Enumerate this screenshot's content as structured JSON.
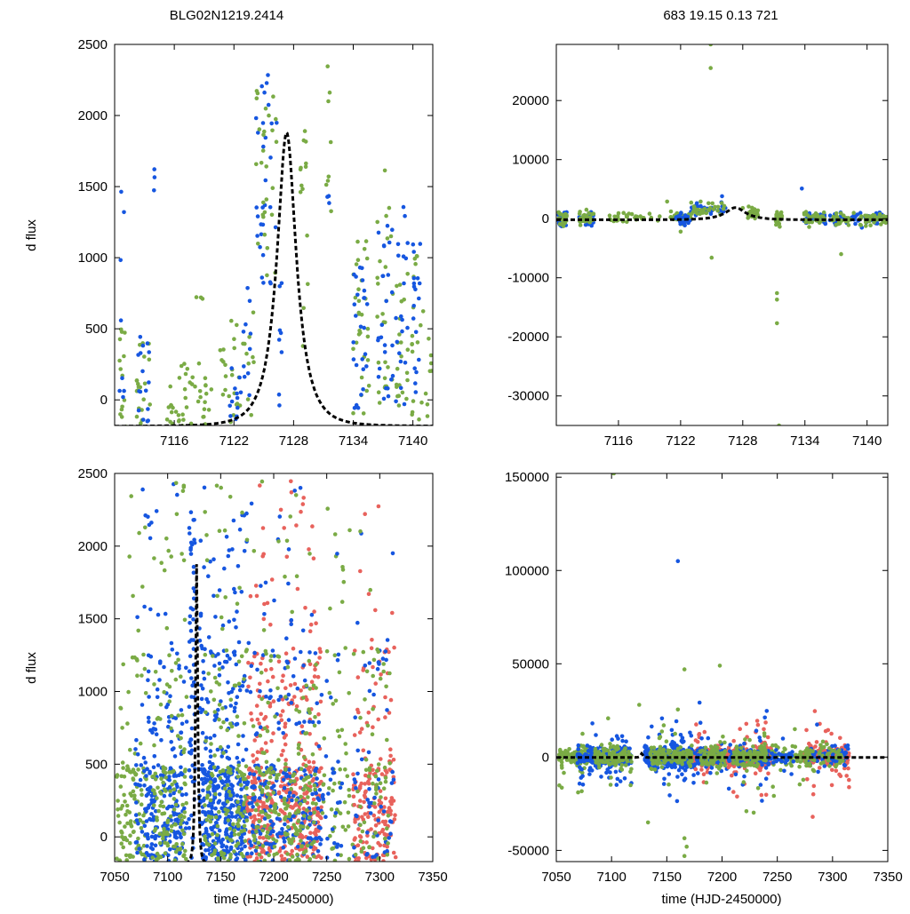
{
  "chart_data": [
    {
      "id": "top-left",
      "type": "scatter",
      "title": "BLG02N1219.2414",
      "xlabel": "",
      "ylabel": "d flux",
      "xlim": [
        7110,
        7142
      ],
      "ylim": [
        -180,
        2500
      ],
      "xticks": [
        7116,
        7122,
        7128,
        7134,
        7140
      ],
      "yticks": [
        0,
        500,
        1000,
        1500,
        2000,
        2500
      ],
      "model": {
        "t0": 7127.3,
        "peak": 1880,
        "tE": 2.2,
        "baseline": -185
      }
    },
    {
      "id": "top-right",
      "type": "scatter",
      "title": "683  19.15  0.13  721",
      "xlabel": "",
      "ylabel": "",
      "xlim": [
        7110,
        7142
      ],
      "ylim": [
        -35000,
        29500
      ],
      "xticks": [
        7116,
        7122,
        7128,
        7134,
        7140
      ],
      "yticks": [
        -30000,
        -20000,
        -10000,
        0,
        10000,
        20000
      ],
      "model": {
        "t0": 7127.3,
        "peak": 1880,
        "tE": 2.2,
        "baseline": -185
      }
    },
    {
      "id": "bottom-left",
      "type": "scatter",
      "title": "",
      "xlabel": "time (HJD-2450000)",
      "ylabel": "d flux",
      "xlim": [
        7050,
        7350
      ],
      "ylim": [
        -170,
        2500
      ],
      "xticks": [
        7050,
        7100,
        7150,
        7200,
        7250,
        7300,
        7350
      ],
      "yticks": [
        0,
        500,
        1000,
        1500,
        2000,
        2500
      ],
      "model": {
        "t0": 7127.3,
        "peak": 1880,
        "tE": 2.2,
        "baseline": -185
      }
    },
    {
      "id": "bottom-right",
      "type": "scatter",
      "title": "",
      "xlabel": "time (HJD-2450000)",
      "ylabel": "",
      "xlim": [
        7050,
        7350
      ],
      "ylim": [
        -56000,
        152000
      ],
      "xticks": [
        7050,
        7100,
        7150,
        7200,
        7250,
        7300,
        7350
      ],
      "yticks": [
        -50000,
        0,
        50000,
        100000,
        150000
      ],
      "model": {
        "t0": 7127.3,
        "peak": 1880,
        "tE": 2.2,
        "baseline": -185
      }
    }
  ],
  "series_colors": {
    "green": "#7aab45",
    "blue": "#1656e0",
    "red": "#e8625c",
    "model": "#000000"
  }
}
